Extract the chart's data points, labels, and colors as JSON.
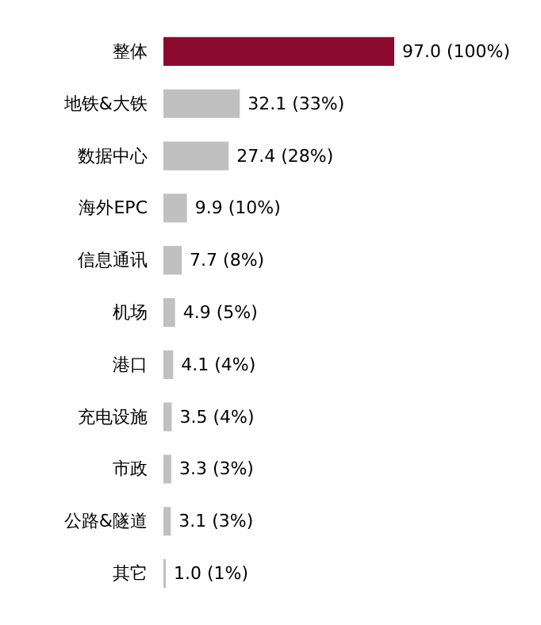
{
  "chart_data": {
    "type": "bar",
    "orientation": "horizontal",
    "categories": [
      "整体",
      "地铁&大铁",
      "数据中心",
      "海外EPC",
      "信息通讯",
      "机场",
      "港口",
      "充电设施",
      "市政",
      "公路&隧道",
      "其它"
    ],
    "values": [
      97.0,
      32.1,
      27.4,
      9.9,
      7.7,
      4.9,
      4.1,
      3.5,
      3.3,
      3.1,
      1.0
    ],
    "colors": [
      "#8c0a2e",
      "#c0c0c0",
      "#c0c0c0",
      "#c0c0c0",
      "#c0c0c0",
      "#c0c0c0",
      "#c0c0c0",
      "#c0c0c0",
      "#c0c0c0",
      "#c0c0c0",
      "#c0c0c0"
    ],
    "value_labels": [
      "97.0 (100%)",
      "32.1 (33%)",
      "27.4 (28%)",
      "9.9 (10%)",
      "7.7 (8%)",
      "4.9 (5%)",
      "4.1 (4%)",
      "3.5 (4%)",
      "3.3 (3%)",
      "3.1 (3%)",
      "1.0 (1%)"
    ]
  }
}
